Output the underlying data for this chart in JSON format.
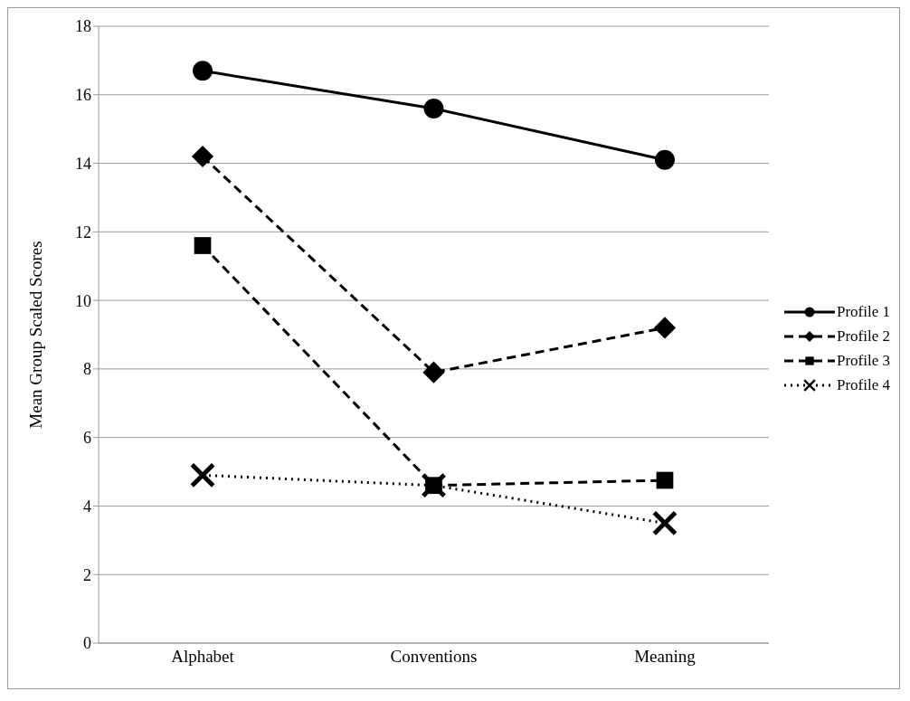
{
  "chart_data": {
    "type": "line",
    "ylabel": "Mean Group Scaled Scores",
    "categories": [
      "Alphabet",
      "Conventions",
      "Meaning"
    ],
    "series": [
      {
        "name": "Profile 1",
        "color": "#000000",
        "marker": "circle",
        "line_style": "solid",
        "values": [
          16.7,
          15.6,
          14.1
        ]
      },
      {
        "name": "Profile 2",
        "color": "#000000",
        "marker": "diamond",
        "line_style": "dashed",
        "values": [
          14.2,
          7.9,
          9.2
        ]
      },
      {
        "name": "Profile 3",
        "color": "#000000",
        "marker": "square",
        "line_style": "dashed",
        "values": [
          11.6,
          4.6,
          4.75
        ]
      },
      {
        "name": "Profile 4",
        "color": "#000000",
        "marker": "cross",
        "line_style": "dotted",
        "values": [
          4.9,
          4.6,
          3.5
        ]
      }
    ],
    "ylim": [
      0,
      18
    ],
    "yticks": [
      0,
      2,
      4,
      6,
      8,
      10,
      12,
      14,
      16,
      18
    ],
    "grid": "y",
    "legend": "right"
  }
}
